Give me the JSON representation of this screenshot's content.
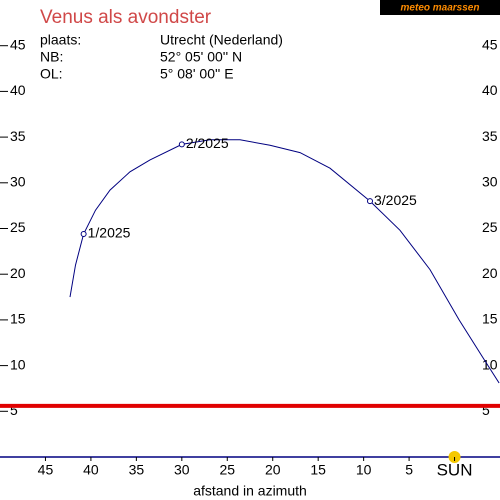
{
  "chart_data": {
    "type": "line",
    "title": "Venus als avondster",
    "title_color": "#d04848",
    "logo": "meteo maarssen",
    "info": [
      [
        "plaats:",
        "Utrecht (Nederland)"
      ],
      [
        "NB:",
        "52° 05' 00'' N"
      ],
      [
        "OL:",
        "5° 08' 00'' E"
      ]
    ],
    "x_label": "afstand in azimuth",
    "xlim": [
      50,
      -5
    ],
    "ylim": [
      0,
      50
    ],
    "xticks": [
      45,
      40,
      35,
      30,
      25,
      20,
      15,
      10,
      5,
      {
        "value": 0,
        "label": "SUN"
      }
    ],
    "yticks": [
      5,
      10,
      15,
      20,
      25,
      30,
      35,
      40,
      45
    ],
    "sun_color": "#f5c800",
    "horizon_color": "#000080",
    "reference_lines": [
      {
        "value": 5.6,
        "color": "#e00000"
      }
    ],
    "series": [
      {
        "color": "#000080",
        "x": [
          42.3,
          41.7,
          40.8,
          39.5,
          37.9,
          35.7,
          33.5,
          30.0,
          26.9,
          23.6,
          20.3,
          17.0,
          13.7,
          9.3,
          6.0,
          2.7,
          -0.5,
          -3.3,
          -4.9
        ],
        "values": [
          17.5,
          21.0,
          24.4,
          27.0,
          29.2,
          31.2,
          32.5,
          34.2,
          34.7,
          34.7,
          34.1,
          33.3,
          31.6,
          28.0,
          24.8,
          20.5,
          15.0,
          10.6,
          8.1
        ]
      }
    ],
    "markers": [
      {
        "x": 40.8,
        "y": 24.4,
        "label": "1/2025"
      },
      {
        "x": 30.0,
        "y": 34.2,
        "label": "2/2025"
      },
      {
        "x": 9.3,
        "y": 28.0,
        "label": "3/2025"
      }
    ]
  }
}
